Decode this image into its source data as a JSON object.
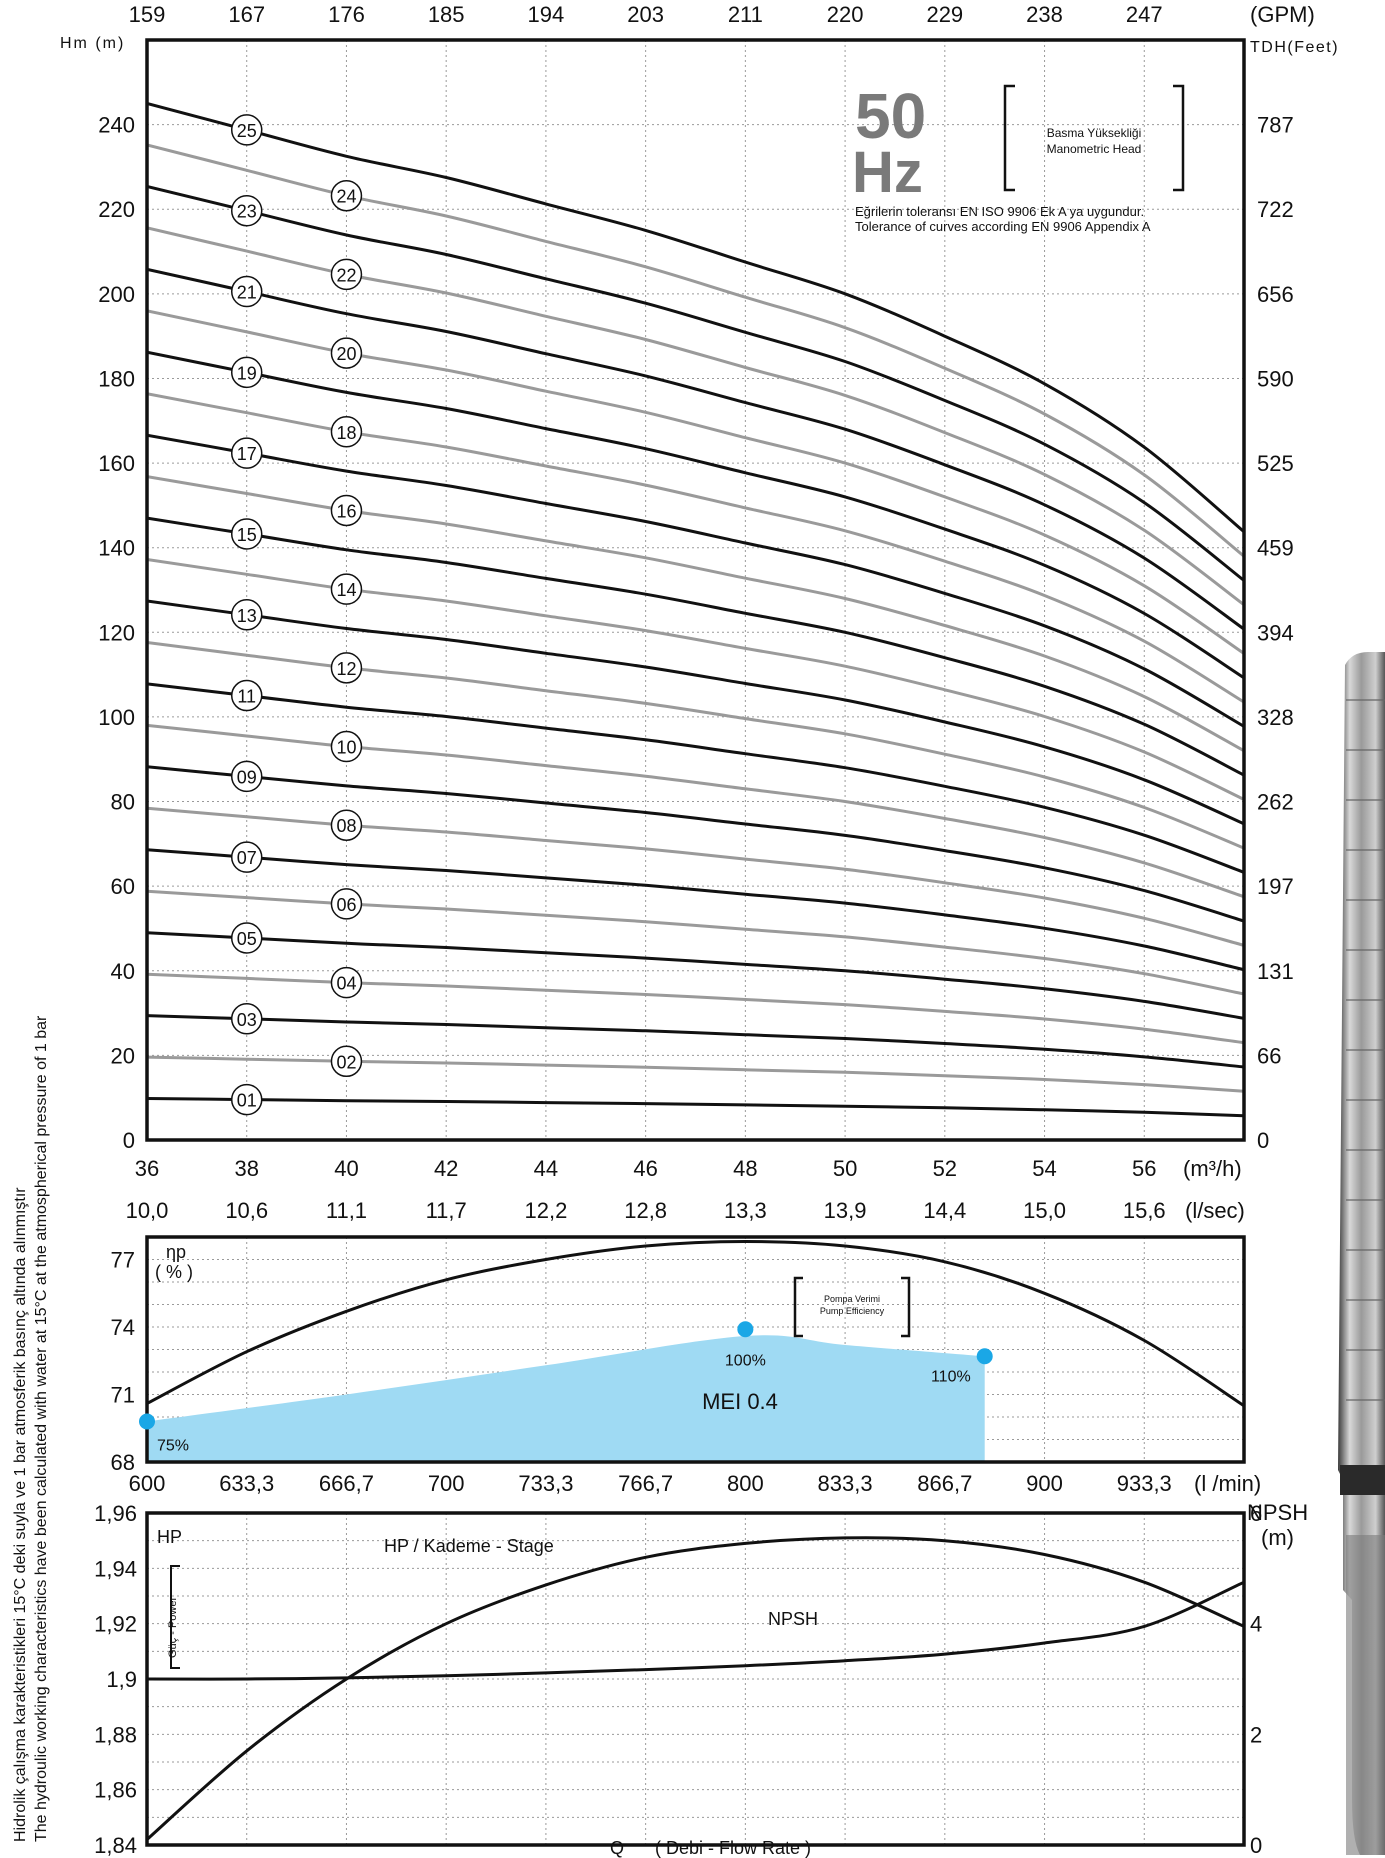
{
  "chart_data": [
    {
      "type": "line",
      "panel": "head",
      "hz_number": "50",
      "hz_unit": "Hz",
      "legend_tr": "Basma Yüksekliği",
      "legend_en": "Manometric Head",
      "tolerance_tr": "Eğrilerin toleransı EN ISO 9906 Ek A ya uygundur.",
      "tolerance_en": "Tolerance of curves according EN 9906 Appendix A",
      "ylabel_left": "Hm (m)",
      "ylabel_right": "TDH(Feet)",
      "xlabel_bottom": "(m³/h)",
      "xlabel_top": "(GPM)",
      "xlabel_lsec": "(l/sec)",
      "x_ticks_m3h": [
        "36",
        "38",
        "40",
        "42",
        "44",
        "46",
        "48",
        "50",
        "52",
        "54",
        "56"
      ],
      "x_ticks_gpm": [
        "159",
        "167",
        "176",
        "185",
        "194",
        "203",
        "211",
        "220",
        "229",
        "238",
        "247"
      ],
      "x_ticks_lsec": [
        "10,0",
        "10,6",
        "11,1",
        "11,7",
        "12,2",
        "12,8",
        "13,3",
        "13,9",
        "14,4",
        "15,0",
        "15,6"
      ],
      "y_ticks_m": [
        "0",
        "20",
        "40",
        "60",
        "80",
        "100",
        "120",
        "140",
        "160",
        "180",
        "200",
        "220",
        "240"
      ],
      "y_ticks_feet": [
        "0",
        "66",
        "131",
        "197",
        "262",
        "328",
        "394",
        "459",
        "525",
        "590",
        "656",
        "722",
        "787"
      ],
      "xlim": [
        36,
        58
      ],
      "ylim": [
        0,
        260
      ],
      "per_stage_head_m": {
        "q": [
          36,
          38,
          40,
          42,
          44,
          46,
          48,
          50,
          52,
          54,
          56,
          58
        ],
        "h": [
          9.8,
          9.55,
          9.3,
          9.1,
          8.85,
          8.6,
          8.3,
          8.0,
          7.6,
          7.15,
          6.55,
          5.75
        ]
      },
      "stage_labels": [
        "01",
        "02",
        "03",
        "04",
        "05",
        "06",
        "07",
        "08",
        "09",
        "10",
        "11",
        "12",
        "13",
        "14",
        "15",
        "16",
        "17",
        "18",
        "19",
        "20",
        "21",
        "22",
        "23",
        "24",
        "25"
      ],
      "odd_curve_color": "#111111",
      "even_curve_color": "#9a9a9a"
    },
    {
      "type": "area",
      "panel": "efficiency",
      "ylabel": "ηp",
      "ylabel_unit": "( % )",
      "legend_tr": "Pompa Verimi",
      "legend_en": "Pump Efficiency",
      "y_ticks": [
        "68",
        "71",
        "74",
        "77"
      ],
      "ylim": [
        68,
        78
      ],
      "xlim": [
        36,
        58
      ],
      "efficiency_curve": {
        "q": [
          36,
          38,
          40,
          42,
          44,
          46,
          48,
          50,
          52,
          54,
          56,
          58
        ],
        "eta": [
          70.6,
          72.9,
          74.7,
          76.1,
          77.0,
          77.6,
          77.8,
          77.6,
          76.9,
          75.5,
          73.4,
          70.5
        ]
      },
      "mei_band": {
        "q": [
          36,
          40,
          44,
          48,
          50,
          52.8
        ],
        "eta": [
          69.8,
          71.0,
          72.3,
          73.6,
          73.2,
          72.7
        ]
      },
      "mei_label": "MEI 0.4",
      "mei_fill_color": "#9fdaf3",
      "marker_color": "#1aa7e6",
      "markers": [
        {
          "label": "75%",
          "q": 36,
          "eta": 69.8
        },
        {
          "label": "100%",
          "q": 48,
          "eta": 73.9
        },
        {
          "label": "110%",
          "q": 52.8,
          "eta": 72.7
        }
      ]
    },
    {
      "type": "line",
      "panel": "power_npsh",
      "lmin_ticks": [
        "600",
        "633,3",
        "666,7",
        "700",
        "733,3",
        "766,7",
        "800",
        "833,3",
        "866,7",
        "900",
        "933,3"
      ],
      "lmin_label": "(l /min)",
      "y_ticks_hp": [
        "1,84",
        "1,86",
        "1,88",
        "1,9",
        "1,92",
        "1,94",
        "1,96"
      ],
      "y_ticks_npsh": [
        "0",
        "2",
        "4",
        "6"
      ],
      "ylabel_left": "HP",
      "power_tag": "Güç - Power",
      "ylabel_right": "NPSH",
      "ylabel_right_unit": "(m)",
      "hp_curve_label": "HP / Kademe - Stage",
      "npsh_curve_label": "NPSH",
      "ylim_hp": [
        1.84,
        1.96
      ],
      "ylim_npsh": [
        0,
        6
      ],
      "xlim": [
        36,
        58
      ],
      "hp_curve": {
        "q": [
          36,
          38,
          40,
          42,
          44,
          46,
          48,
          50,
          52,
          54,
          56,
          58
        ],
        "hp": [
          1.842,
          1.874,
          1.9,
          1.92,
          1.934,
          1.944,
          1.949,
          1.951,
          1.95,
          1.945,
          1.935,
          1.919
        ]
      },
      "npsh_curve": {
        "q": [
          36,
          38,
          40,
          42,
          44,
          46,
          48,
          50,
          52,
          54,
          56,
          58
        ],
        "npsh": [
          3.0,
          3.0,
          3.02,
          3.06,
          3.11,
          3.17,
          3.24,
          3.33,
          3.45,
          3.65,
          3.95,
          4.75
        ]
      },
      "xlabel": "Q",
      "xlabel_desc": "( Debi - Flow Rate )"
    }
  ],
  "side_caption_tr": "Hidrolik çalışma karakteristikleri 15°C deki suyla ve 1 bar atmosferik basınç altında alınmıştır",
  "side_caption_en": "The hydroulic working characteristics have been calculated with water at 15°C at the atmospherical pressure of 1 bar"
}
